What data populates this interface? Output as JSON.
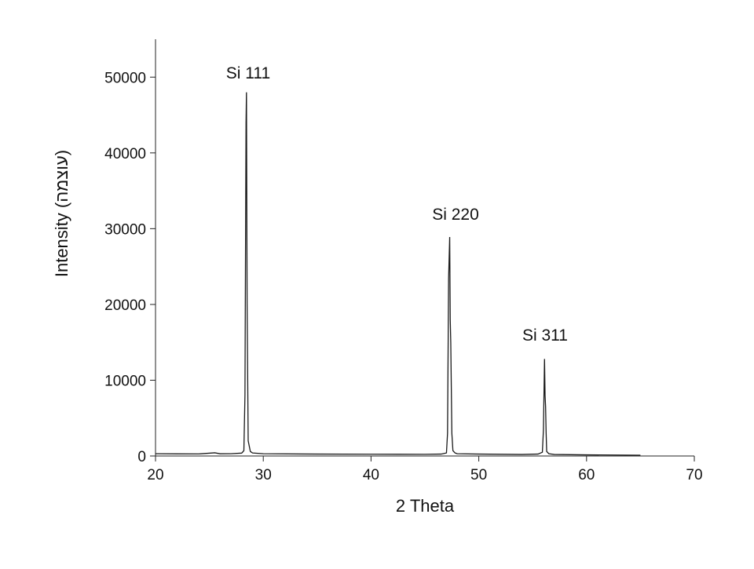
{
  "chart_data": {
    "type": "line",
    "x_label": "2 Theta",
    "y_label": "Intensity (עוצמה)",
    "annotations": [
      "Si 111",
      "Si 220",
      "Si 311"
    ],
    "x": [
      20,
      22,
      24,
      25.5,
      26,
      27,
      28,
      28.2,
      28.3,
      28.4,
      28.44,
      28.5,
      28.6,
      28.8,
      29,
      30,
      35,
      40,
      45,
      46.5,
      47,
      47.1,
      47.2,
      47.3,
      47.35,
      47.4,
      47.45,
      47.5,
      47.6,
      47.8,
      48,
      50,
      54,
      55.5,
      55.9,
      56.0,
      56.1,
      56.15,
      56.2,
      56.25,
      56.3,
      56.5,
      57,
      60,
      65
    ],
    "series": [
      {
        "color": "#1a1a1a",
        "values": [
          300,
          280,
          270,
          420,
          290,
          300,
          380,
          700,
          8000,
          44000,
          48000,
          20000,
          2000,
          600,
          400,
          300,
          250,
          230,
          220,
          250,
          400,
          3000,
          23500,
          28900,
          18000,
          15000,
          9000,
          3000,
          700,
          400,
          300,
          250,
          200,
          250,
          500,
          3500,
          12800,
          8000,
          6500,
          3000,
          600,
          300,
          200,
          150,
          100
        ]
      }
    ],
    "xlim": [
      20,
      70
    ],
    "xticks": [
      20,
      30,
      40,
      50,
      60,
      70
    ],
    "ylim": [
      0,
      55000
    ],
    "yticks": [
      0,
      10000,
      20000,
      30000,
      40000,
      50000
    ]
  }
}
